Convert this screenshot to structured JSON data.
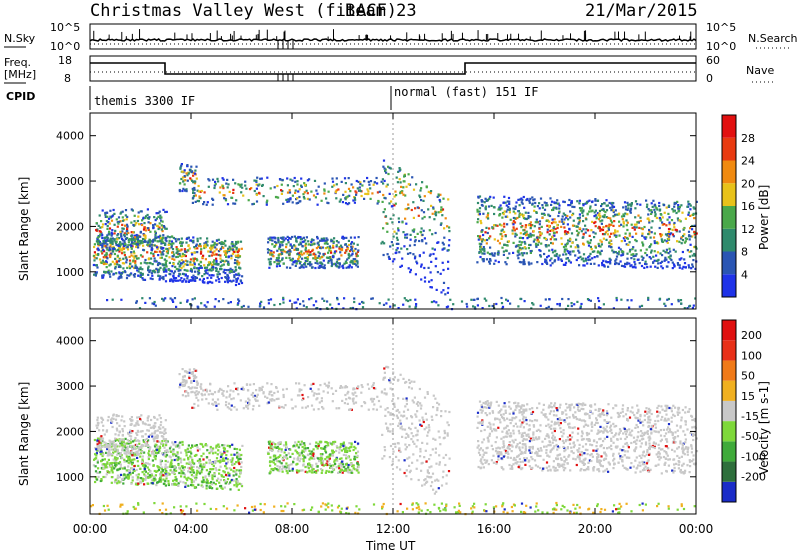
{
  "header": {
    "title": "Christmas Valley West (fitACF)",
    "beam": "Beam 23",
    "date": "21/Mar/2015"
  },
  "noise_panel": {
    "left_label": "N.Sky",
    "right_label": "N.Search",
    "ticks_left": [
      "10^5",
      "10^0"
    ],
    "ticks_right": [
      "10^5",
      "10^0"
    ]
  },
  "freq_panel": {
    "left_label_1": "Freq.",
    "left_label_2": "[MHz]",
    "ticks_left": [
      "18",
      "8"
    ],
    "ticks_right": [
      "60",
      "0"
    ],
    "right_label": "Nave"
  },
  "cpid": {
    "label": "CPID",
    "segments": [
      "themis 3300 IF",
      "normal (fast) 151 IF"
    ]
  },
  "x_axis": {
    "label": "Time UT",
    "ticks": [
      "00:00",
      "04:00",
      "08:00",
      "12:00",
      "16:00",
      "20:00",
      "00:00"
    ]
  },
  "chart_data": [
    {
      "type": "heatmap",
      "title": "Power",
      "ylabel": "Slant Range [km]",
      "xlabel": "Time UT",
      "ylim": [
        180,
        4500
      ],
      "yticks": [
        1000,
        2000,
        3000,
        4000
      ],
      "xlim_hours": [
        0,
        24
      ],
      "colorbar": {
        "label": "Power [dB]",
        "ticks": [
          "4",
          "8",
          "12",
          "16",
          "20",
          "24",
          "28"
        ],
        "colors": [
          "#1f33e8",
          "#2a55b3",
          "#2f8a6c",
          "#4aa84a",
          "#e8c21a",
          "#f08a10",
          "#e83a10",
          "#e21010"
        ]
      }
    },
    {
      "type": "heatmap",
      "title": "Velocity",
      "ylabel": "Slant Range [km]",
      "xlabel": "Time UT",
      "ylim": [
        180,
        4500
      ],
      "yticks": [
        1000,
        2000,
        3000,
        4000
      ],
      "xlim_hours": [
        0,
        24
      ],
      "colorbar": {
        "label": "Velocity [m s-1]",
        "ticks": [
          "200",
          "100",
          "50",
          "15",
          "-15",
          "-50",
          "-100",
          "-200"
        ],
        "colors": [
          "#1a2cc8",
          "#2e6f3c",
          "#3faa3a",
          "#7ed83a",
          "#c8c8c8",
          "#f0b020",
          "#f07a18",
          "#e83018",
          "#e01010"
        ]
      }
    }
  ]
}
